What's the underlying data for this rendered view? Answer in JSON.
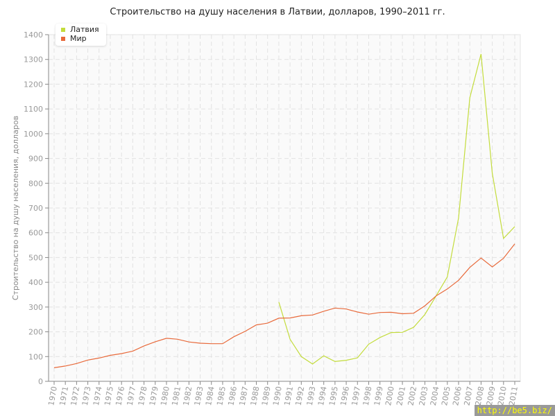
{
  "chart_data": {
    "type": "line",
    "title": "Строительство на душу населения в Латвии, долларов, 1990–2011 гг.",
    "ylabel": "Строительство на душу населения, долларов",
    "xlabel": "",
    "ylim": [
      0,
      1400
    ],
    "yticks": [
      0,
      100,
      200,
      300,
      400,
      500,
      600,
      700,
      800,
      900,
      1000,
      1100,
      1200,
      1300,
      1400
    ],
    "x": [
      1970,
      1971,
      1972,
      1973,
      1974,
      1975,
      1976,
      1977,
      1978,
      1979,
      1980,
      1981,
      1982,
      1983,
      1984,
      1985,
      1986,
      1987,
      1988,
      1989,
      1990,
      1991,
      1992,
      1993,
      1994,
      1995,
      1996,
      1997,
      1998,
      1999,
      2000,
      2001,
      2002,
      2003,
      2004,
      2005,
      2006,
      2007,
      2008,
      2009,
      2010,
      2011
    ],
    "grid": true,
    "legend": "top-left",
    "series": [
      {
        "name": "Латвия",
        "color": "#c3dc3b",
        "values": [
          null,
          null,
          null,
          null,
          null,
          null,
          null,
          null,
          null,
          null,
          null,
          null,
          null,
          null,
          null,
          null,
          null,
          null,
          null,
          null,
          320,
          170,
          100,
          70,
          103,
          80,
          85,
          95,
          150,
          177,
          197,
          198,
          218,
          270,
          345,
          422,
          660,
          1145,
          1322,
          840,
          577,
          625
        ]
      },
      {
        "name": "Мир",
        "color": "#e8693a",
        "values": [
          55,
          62,
          72,
          86,
          94,
          105,
          112,
          122,
          143,
          160,
          174,
          170,
          159,
          154,
          152,
          152,
          180,
          202,
          228,
          235,
          255,
          256,
          265,
          268,
          283,
          296,
          292,
          280,
          271,
          278,
          279,
          273,
          275,
          305,
          345,
          373,
          408,
          460,
          498,
          462,
          497,
          555
        ]
      }
    ]
  },
  "watermark": "http://be5.biz/"
}
